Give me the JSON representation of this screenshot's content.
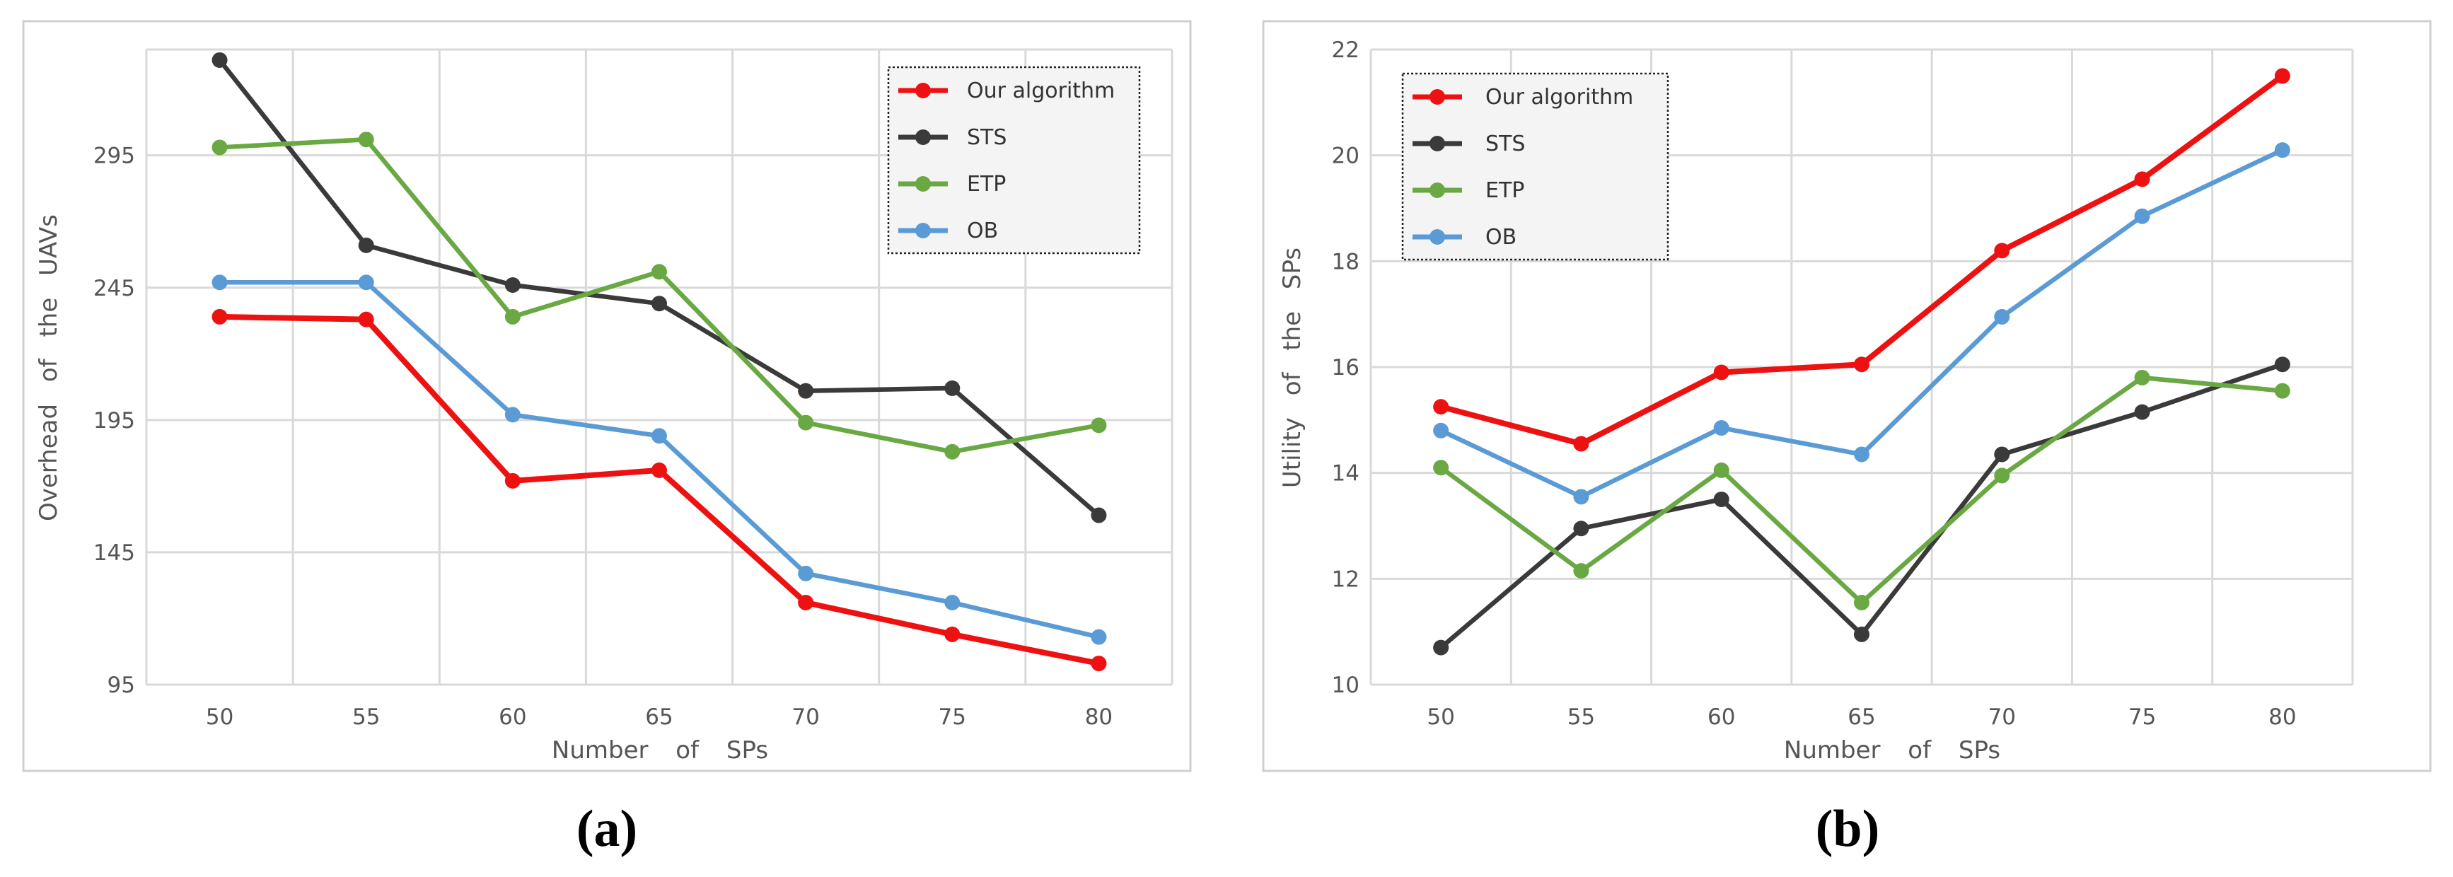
{
  "chart_data": [
    {
      "type": "line",
      "caption": "(a)",
      "xlabel": "Number of SPs",
      "ylabel": "Overhead of the UAVs",
      "x": [
        50,
        55,
        60,
        65,
        70,
        75,
        80
      ],
      "x_ticks": [
        "50",
        "55",
        "60",
        "65",
        "70",
        "75",
        "80"
      ],
      "ylim": [
        95,
        335
      ],
      "y_ticks": [
        95,
        145,
        195,
        245,
        295
      ],
      "y_tick_labels": [
        "95",
        "145",
        "195",
        "245",
        "295"
      ],
      "grid": true,
      "legend_position": "top-right",
      "series": [
        {
          "name": "Our algorithm",
          "color": "#ee1111",
          "values": [
            234,
            233,
            172,
            176,
            126,
            114,
            103
          ]
        },
        {
          "name": "STS",
          "color": "#3a3a3a",
          "values": [
            331,
            261,
            246,
            239,
            206,
            207,
            159
          ]
        },
        {
          "name": "ETP",
          "color": "#6aa843",
          "values": [
            298,
            301,
            234,
            251,
            194,
            183,
            193
          ]
        },
        {
          "name": "OB",
          "color": "#5b9bd5",
          "values": [
            247,
            247,
            197,
            189,
            137,
            126,
            113
          ]
        }
      ]
    },
    {
      "type": "line",
      "caption": "(b)",
      "xlabel": "Number of SPs",
      "ylabel": "Utility of the SPs",
      "x": [
        50,
        55,
        60,
        65,
        70,
        75,
        80
      ],
      "x_ticks": [
        "50",
        "55",
        "60",
        "65",
        "70",
        "75",
        "80"
      ],
      "ylim": [
        10,
        22
      ],
      "y_ticks": [
        10,
        12,
        14,
        16,
        18,
        20,
        22
      ],
      "y_tick_labels": [
        "10",
        "12",
        "14",
        "16",
        "18",
        "20",
        "22"
      ],
      "grid": true,
      "legend_position": "top-left",
      "series": [
        {
          "name": "Our algorithm",
          "color": "#ee1111",
          "values": [
            15.25,
            14.55,
            15.9,
            16.05,
            18.2,
            19.55,
            21.5
          ]
        },
        {
          "name": "STS",
          "color": "#3a3a3a",
          "values": [
            10.7,
            12.95,
            13.5,
            10.95,
            14.35,
            15.15,
            16.05
          ]
        },
        {
          "name": "ETP",
          "color": "#6aa843",
          "values": [
            14.1,
            12.15,
            14.05,
            11.55,
            13.95,
            15.8,
            15.55
          ]
        },
        {
          "name": "OB",
          "color": "#5b9bd5",
          "values": [
            14.8,
            13.55,
            14.85,
            14.35,
            16.95,
            18.85,
            20.1
          ]
        }
      ]
    }
  ]
}
